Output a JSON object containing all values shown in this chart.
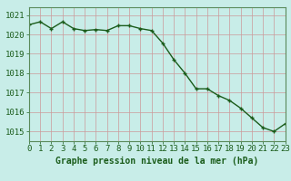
{
  "x": [
    0,
    1,
    2,
    3,
    4,
    5,
    6,
    7,
    8,
    9,
    10,
    11,
    12,
    13,
    14,
    15,
    16,
    17,
    18,
    19,
    20,
    21,
    22,
    23
  ],
  "y": [
    1020.5,
    1020.65,
    1020.3,
    1020.65,
    1020.3,
    1020.2,
    1020.25,
    1020.2,
    1020.45,
    1020.45,
    1020.3,
    1020.2,
    1019.55,
    1018.7,
    1018.0,
    1017.2,
    1017.2,
    1016.85,
    1016.6,
    1016.2,
    1015.7,
    1015.2,
    1015.0,
    1015.4
  ],
  "line_color": "#1a5c1a",
  "marker_color": "#1a5c1a",
  "bg_color": "#c8ede8",
  "grid_color": "#cc9999",
  "xlabel": "Graphe pression niveau de la mer (hPa)",
  "ylabel_ticks": [
    1015,
    1016,
    1017,
    1018,
    1019,
    1020,
    1021
  ],
  "xlim": [
    0,
    23
  ],
  "ylim": [
    1014.5,
    1021.4
  ],
  "xticks": [
    0,
    1,
    2,
    3,
    4,
    5,
    6,
    7,
    8,
    9,
    10,
    11,
    12,
    13,
    14,
    15,
    16,
    17,
    18,
    19,
    20,
    21,
    22,
    23
  ],
  "xlabel_fontsize": 7.0,
  "tick_fontsize": 6.5,
  "line_width": 1.0,
  "marker_size": 2.8,
  "spine_color": "#5a8a5a"
}
